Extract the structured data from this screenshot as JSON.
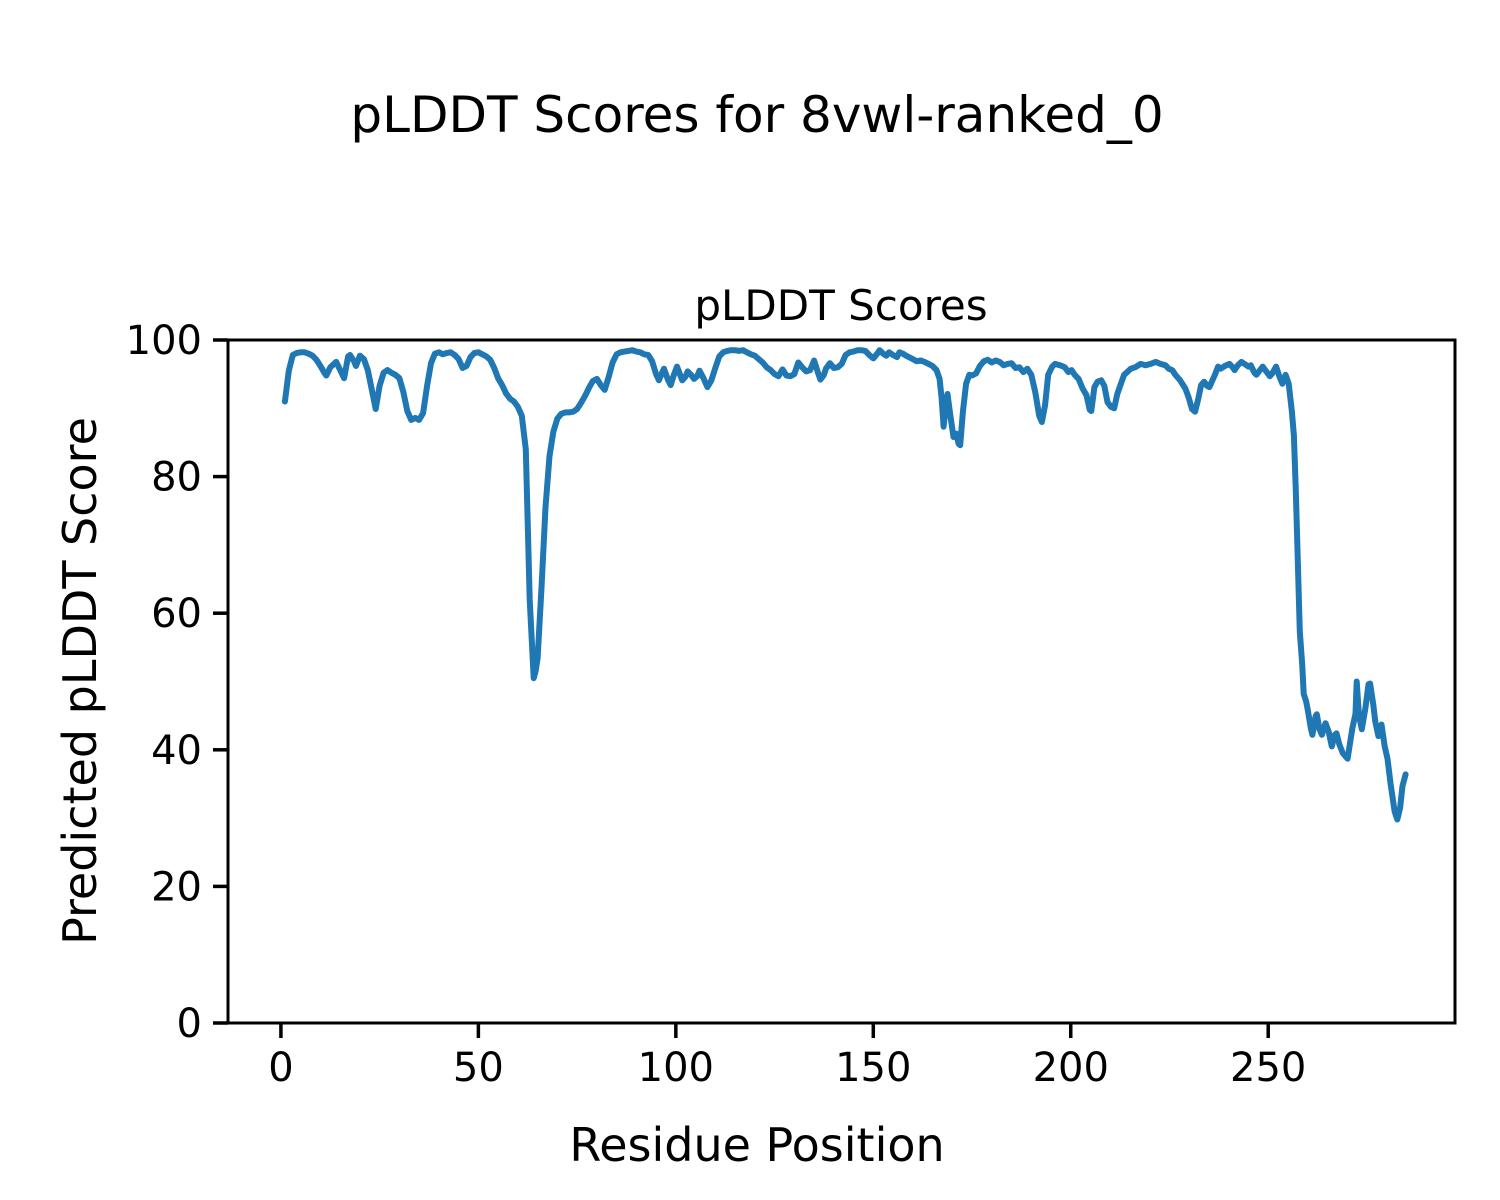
{
  "chart_data": {
    "type": "line",
    "suptitle": "pLDDT Scores for 8vwl-ranked_0",
    "title": "pLDDT Scores",
    "xlabel": "Residue Position",
    "ylabel": "Predicted pLDDT Score",
    "xlim": [
      -13.4,
      297.3
    ],
    "ylim": [
      0,
      100
    ],
    "x_ticks": [
      0,
      50,
      100,
      150,
      200,
      250
    ],
    "y_ticks": [
      0,
      20,
      40,
      60,
      80,
      100
    ],
    "grid": false,
    "legend": "none",
    "line_color": "#1f77b4",
    "spine_color": "#000000",
    "background": "#ffffff",
    "series": [
      {
        "name": "pLDDT",
        "points": [
          [
            1,
            91
          ],
          [
            2,
            95.5
          ],
          [
            3,
            97.8
          ],
          [
            4,
            98.1
          ],
          [
            5,
            98.2
          ],
          [
            6,
            98.2
          ],
          [
            7,
            98
          ],
          [
            8,
            97.7
          ],
          [
            9,
            97.1
          ],
          [
            10,
            96.2
          ],
          [
            11,
            95.2
          ],
          [
            11.5,
            94.8
          ],
          [
            12.5,
            96
          ],
          [
            14,
            96.8
          ],
          [
            15,
            95.6
          ],
          [
            16,
            94.4
          ],
          [
            17,
            97.6
          ],
          [
            17.5,
            97.8
          ],
          [
            18.5,
            96.9
          ],
          [
            19,
            96.2
          ],
          [
            20,
            97.7
          ],
          [
            21,
            97.2
          ],
          [
            22,
            95.6
          ],
          [
            23,
            92.8
          ],
          [
            24,
            89.9
          ],
          [
            25,
            93.3
          ],
          [
            26,
            95.2
          ],
          [
            27,
            95.6
          ],
          [
            28,
            95.2
          ],
          [
            29,
            94.9
          ],
          [
            30,
            94.4
          ],
          [
            31,
            92.4
          ],
          [
            32,
            89.6
          ],
          [
            33,
            88.3
          ],
          [
            34,
            88.6
          ],
          [
            35,
            88.3
          ],
          [
            36,
            89.3
          ],
          [
            37,
            93.2
          ],
          [
            38,
            96.6
          ],
          [
            39,
            98
          ],
          [
            40,
            98.2
          ],
          [
            41,
            97.9
          ],
          [
            42,
            98.1
          ],
          [
            43,
            98.2
          ],
          [
            44,
            97.8
          ],
          [
            45,
            97.2
          ],
          [
            46,
            95.9
          ],
          [
            47,
            96.2
          ],
          [
            48,
            97.5
          ],
          [
            49,
            98.1
          ],
          [
            50,
            98.2
          ],
          [
            51,
            97.9
          ],
          [
            52,
            97.6
          ],
          [
            53,
            97.1
          ],
          [
            54,
            95.9
          ],
          [
            55,
            94.4
          ],
          [
            56,
            93.4
          ],
          [
            57,
            92.2
          ],
          [
            58,
            91.4
          ],
          [
            59,
            91
          ],
          [
            60,
            90.2
          ],
          [
            61,
            88.9
          ],
          [
            62,
            84
          ],
          [
            63,
            62
          ],
          [
            64,
            50.5
          ],
          [
            64.5,
            51.5
          ],
          [
            65,
            53.4
          ],
          [
            66,
            64
          ],
          [
            67,
            75.5
          ],
          [
            68,
            83
          ],
          [
            69,
            86.6
          ],
          [
            70,
            88.5
          ],
          [
            71,
            89.2
          ],
          [
            72,
            89.4
          ],
          [
            73,
            89.4
          ],
          [
            74,
            89.5
          ],
          [
            75,
            89.9
          ],
          [
            76,
            90.8
          ],
          [
            77,
            91.8
          ],
          [
            78,
            93
          ],
          [
            79,
            94
          ],
          [
            80,
            94.3
          ],
          [
            81,
            93.4
          ],
          [
            82,
            92.7
          ],
          [
            83,
            94.6
          ],
          [
            84,
            96.7
          ],
          [
            85,
            97.9
          ],
          [
            86,
            98.2
          ],
          [
            87,
            98.3
          ],
          [
            88,
            98.4
          ],
          [
            89,
            98.5
          ],
          [
            90,
            98.3
          ],
          [
            91,
            98.2
          ],
          [
            92,
            97.9
          ],
          [
            93,
            97.8
          ],
          [
            94,
            96.9
          ],
          [
            95,
            95
          ],
          [
            95.7,
            94.1
          ],
          [
            96.5,
            95.2
          ],
          [
            97,
            95.8
          ],
          [
            98,
            94.2
          ],
          [
            98.7,
            93.4
          ],
          [
            99.5,
            94.9
          ],
          [
            100.3,
            96.1
          ],
          [
            101.6,
            94.1
          ],
          [
            102.4,
            94.6
          ],
          [
            103,
            95.4
          ],
          [
            104,
            94.8
          ],
          [
            104.6,
            94.3
          ],
          [
            105.4,
            94.7
          ],
          [
            106,
            95.5
          ],
          [
            107,
            94.4
          ],
          [
            108,
            93.1
          ],
          [
            109,
            94.1
          ],
          [
            110,
            95.9
          ],
          [
            111,
            97.6
          ],
          [
            112,
            98.2
          ],
          [
            113,
            98.4
          ],
          [
            114,
            98.5
          ],
          [
            115,
            98.5
          ],
          [
            116,
            98.4
          ],
          [
            117,
            98.5
          ],
          [
            118,
            98.2
          ],
          [
            119,
            97.9
          ],
          [
            120,
            97.7
          ],
          [
            121,
            97.2
          ],
          [
            122,
            96.7
          ],
          [
            123,
            96
          ],
          [
            124,
            95.6
          ],
          [
            125,
            95
          ],
          [
            126,
            94.7
          ],
          [
            127,
            95.7
          ],
          [
            128,
            94.8
          ],
          [
            129,
            94.7
          ],
          [
            130,
            95
          ],
          [
            131,
            96.7
          ],
          [
            132,
            96
          ],
          [
            133,
            95.4
          ],
          [
            134,
            95.6
          ],
          [
            135,
            97
          ],
          [
            136,
            95.2
          ],
          [
            136.6,
            94.2
          ],
          [
            137.5,
            94.9
          ],
          [
            138,
            95.8
          ],
          [
            139,
            96.6
          ],
          [
            140,
            95.9
          ],
          [
            141,
            96
          ],
          [
            142,
            96.5
          ],
          [
            143,
            97.8
          ],
          [
            144,
            98.2
          ],
          [
            145,
            98.3
          ],
          [
            146,
            98.5
          ],
          [
            147,
            98.5
          ],
          [
            148,
            98.4
          ],
          [
            149,
            97.8
          ],
          [
            150,
            97.3
          ],
          [
            151,
            98
          ],
          [
            151.6,
            98.5
          ],
          [
            152.5,
            98
          ],
          [
            153.3,
            97.7
          ],
          [
            154,
            98.2
          ],
          [
            155,
            97.8
          ],
          [
            156,
            97.5
          ],
          [
            156.6,
            98.2
          ],
          [
            157.5,
            98
          ],
          [
            158.3,
            97.7
          ],
          [
            159,
            97.5
          ],
          [
            160,
            97.2
          ],
          [
            161,
            96.9
          ],
          [
            162,
            97
          ],
          [
            163,
            96.8
          ],
          [
            164,
            96.5
          ],
          [
            165,
            96.2
          ],
          [
            166,
            95.6
          ],
          [
            166.8,
            94.3
          ],
          [
            167.3,
            91.5
          ],
          [
            167.8,
            87.3
          ],
          [
            168.4,
            90.5
          ],
          [
            168.8,
            92.1
          ],
          [
            169.5,
            89
          ],
          [
            170.3,
            85.8
          ],
          [
            171,
            86.3
          ],
          [
            171.6,
            84.8
          ],
          [
            172,
            84.6
          ],
          [
            172.7,
            89.5
          ],
          [
            173.5,
            93.6
          ],
          [
            174.3,
            94.9
          ],
          [
            175,
            94.8
          ],
          [
            176,
            95.1
          ],
          [
            177,
            96.2
          ],
          [
            178,
            96.9
          ],
          [
            179,
            97.1
          ],
          [
            180,
            96.7
          ],
          [
            181,
            97
          ],
          [
            182,
            96.8
          ],
          [
            183,
            96.3
          ],
          [
            184,
            96.5
          ],
          [
            185,
            96.6
          ],
          [
            186,
            95.9
          ],
          [
            187,
            96
          ],
          [
            188,
            95.3
          ],
          [
            189,
            95.8
          ],
          [
            190,
            94.9
          ],
          [
            191,
            92.4
          ],
          [
            192,
            88.9
          ],
          [
            192.7,
            88
          ],
          [
            193.5,
            90.5
          ],
          [
            194.3,
            94.9
          ],
          [
            195.3,
            96.1
          ],
          [
            196,
            96.5
          ],
          [
            197.3,
            96.3
          ],
          [
            198.5,
            96
          ],
          [
            199.4,
            95.3
          ],
          [
            200.2,
            95.6
          ],
          [
            201,
            94.9
          ],
          [
            202,
            94.3
          ],
          [
            203,
            92.9
          ],
          [
            204,
            91.9
          ],
          [
            204.8,
            89.8
          ],
          [
            205.2,
            89.6
          ],
          [
            206,
            93.1
          ],
          [
            206.8,
            93.9
          ],
          [
            207.7,
            94.1
          ],
          [
            208.5,
            93.3
          ],
          [
            209.3,
            90.9
          ],
          [
            210.2,
            90.2
          ],
          [
            211,
            90
          ],
          [
            211.8,
            92.1
          ],
          [
            212.7,
            93.6
          ],
          [
            213.5,
            94.9
          ],
          [
            214.3,
            95.3
          ],
          [
            215.2,
            95.8
          ],
          [
            216.3,
            96
          ],
          [
            217.7,
            96.5
          ],
          [
            219,
            96.3
          ],
          [
            220.2,
            96.5
          ],
          [
            221.5,
            96.8
          ],
          [
            222.7,
            96.5
          ],
          [
            224,
            96.3
          ],
          [
            224.8,
            95.8
          ],
          [
            225.7,
            95.6
          ],
          [
            226.5,
            94.9
          ],
          [
            227.7,
            94.1
          ],
          [
            229,
            92.9
          ],
          [
            229.8,
            91.7
          ],
          [
            230.7,
            89.9
          ],
          [
            231.5,
            89.5
          ],
          [
            232.3,
            91.4
          ],
          [
            233,
            93.4
          ],
          [
            233.8,
            93.9
          ],
          [
            234.5,
            93.3
          ],
          [
            235.1,
            93.1
          ],
          [
            236.5,
            94.9
          ],
          [
            237.3,
            96.1
          ],
          [
            238,
            95.8
          ],
          [
            239,
            96.2
          ],
          [
            240.2,
            96.5
          ],
          [
            241,
            96
          ],
          [
            241.5,
            95.6
          ],
          [
            242.3,
            96.3
          ],
          [
            243.2,
            96.8
          ],
          [
            244,
            96.5
          ],
          [
            245,
            96.1
          ],
          [
            245.6,
            96.3
          ],
          [
            246.5,
            95.2
          ],
          [
            247,
            94.9
          ],
          [
            248.2,
            95.8
          ],
          [
            248.6,
            96.1
          ],
          [
            249.5,
            95.4
          ],
          [
            250.4,
            94.7
          ],
          [
            251,
            95.1
          ],
          [
            252,
            96.1
          ],
          [
            252.8,
            94.7
          ],
          [
            253.6,
            93.6
          ],
          [
            254.4,
            94.9
          ],
          [
            255.2,
            93.6
          ],
          [
            256,
            89.5
          ],
          [
            256.5,
            86
          ],
          [
            257,
            78
          ],
          [
            258,
            57.3
          ],
          [
            258.6,
            52.5
          ],
          [
            259,
            48.2
          ],
          [
            259.6,
            47.1
          ],
          [
            260,
            45.9
          ],
          [
            260.8,
            43.1
          ],
          [
            261.2,
            42.2
          ],
          [
            262,
            44.9
          ],
          [
            262.3,
            45.2
          ],
          [
            263,
            43
          ],
          [
            263.6,
            42.2
          ],
          [
            264.5,
            43.9
          ],
          [
            265.3,
            42.7
          ],
          [
            266.1,
            40.5
          ],
          [
            266.9,
            42.2
          ],
          [
            267.3,
            42.4
          ],
          [
            268,
            40.8
          ],
          [
            268.9,
            39.5
          ],
          [
            270.1,
            38.7
          ],
          [
            271.3,
            43.1
          ],
          [
            272.1,
            45.3
          ],
          [
            272.4,
            50
          ],
          [
            273,
            45
          ],
          [
            273.7,
            43
          ],
          [
            274.6,
            46.1
          ],
          [
            275.4,
            49.6
          ],
          [
            275.8,
            49.7
          ],
          [
            276.6,
            46.6
          ],
          [
            277.1,
            44.2
          ],
          [
            277.9,
            42
          ],
          [
            278.7,
            43.7
          ],
          [
            279.5,
            40.5
          ],
          [
            280.2,
            38.7
          ],
          [
            281,
            35
          ],
          [
            282,
            31
          ],
          [
            282.7,
            29.8
          ],
          [
            283.4,
            31.5
          ],
          [
            284,
            34.7
          ],
          [
            284.8,
            36.4
          ]
        ]
      }
    ]
  }
}
